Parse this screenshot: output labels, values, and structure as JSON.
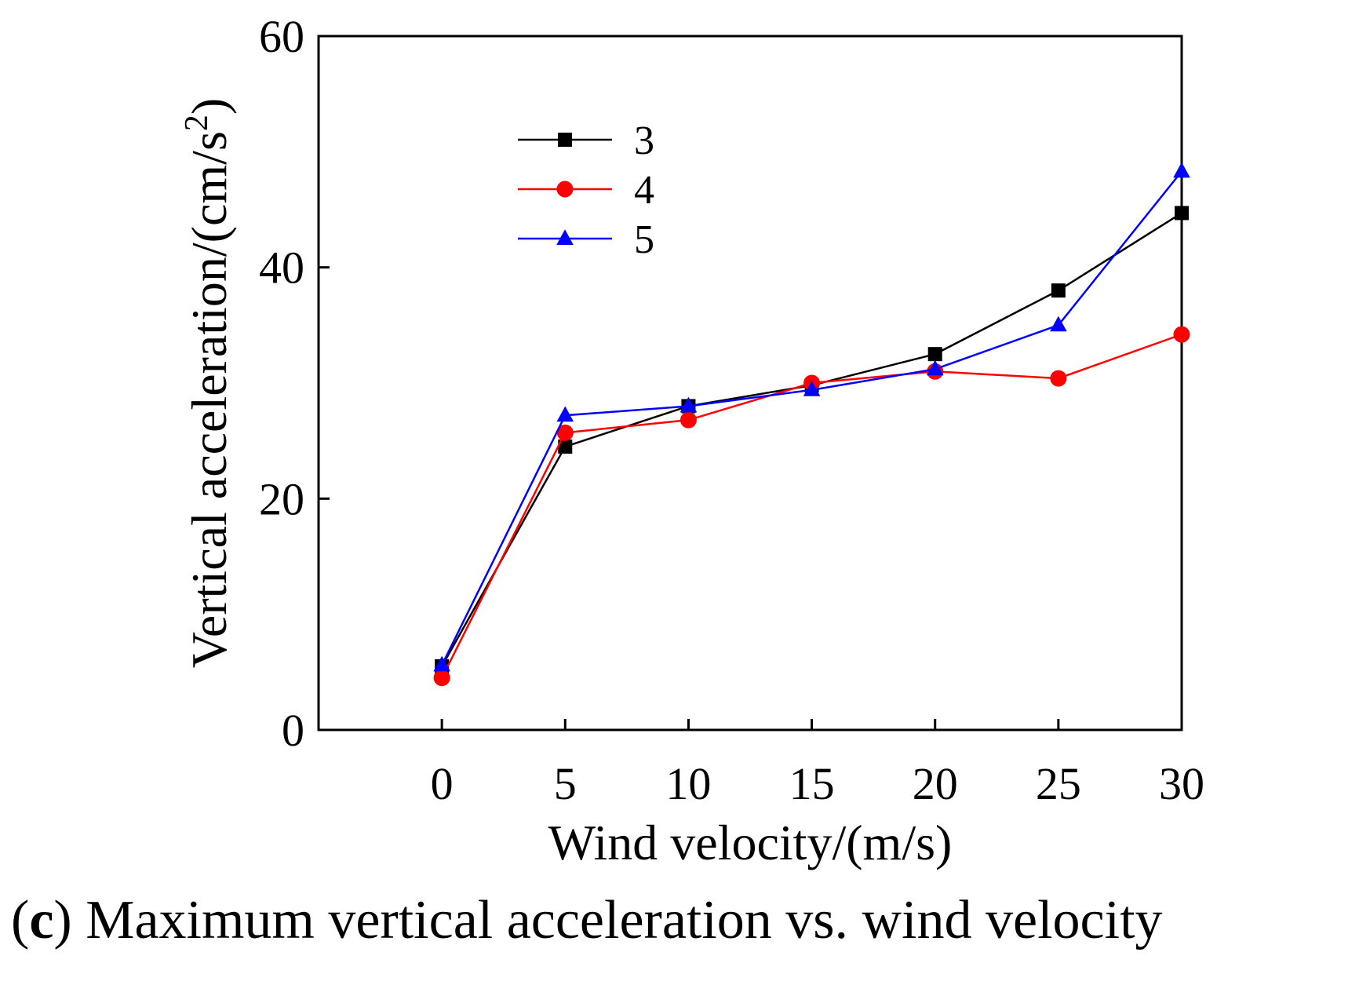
{
  "chart_data": {
    "type": "line",
    "xlabel": "Wind velocity/(m/s)",
    "ylabel": "Vertical acceleration/(cm/s",
    "ylabel_superscript": "2",
    "ylabel_close": ")",
    "xlim": [
      -5,
      30
    ],
    "ylim": [
      0,
      60
    ],
    "x": [
      0,
      5,
      10,
      15,
      20,
      25,
      30
    ],
    "xticks": [
      "0",
      "5",
      "10",
      "15",
      "20",
      "25",
      "30"
    ],
    "yticks": [
      "0",
      "20",
      "40",
      "60"
    ],
    "ytick_values": [
      0,
      20,
      40,
      60
    ],
    "grid": false,
    "legend_position": "upper-left",
    "series": [
      {
        "name": "3",
        "marker": "square",
        "color": "#000000",
        "values": [
          5.5,
          24.5,
          28.0,
          29.8,
          32.5,
          38.0,
          44.7
        ]
      },
      {
        "name": "4",
        "marker": "circle",
        "color": "#ff0000",
        "values": [
          4.5,
          25.7,
          26.8,
          30.0,
          31.0,
          30.4,
          34.2
        ]
      },
      {
        "name": "5",
        "marker": "triangle",
        "color": "#0000ff",
        "values": [
          5.6,
          27.2,
          28.0,
          29.4,
          31.2,
          35.0,
          48.3
        ]
      }
    ]
  },
  "caption": {
    "open": "(",
    "letter": "c",
    "rest": ") Maximum vertical acceleration vs. wind velocity"
  }
}
